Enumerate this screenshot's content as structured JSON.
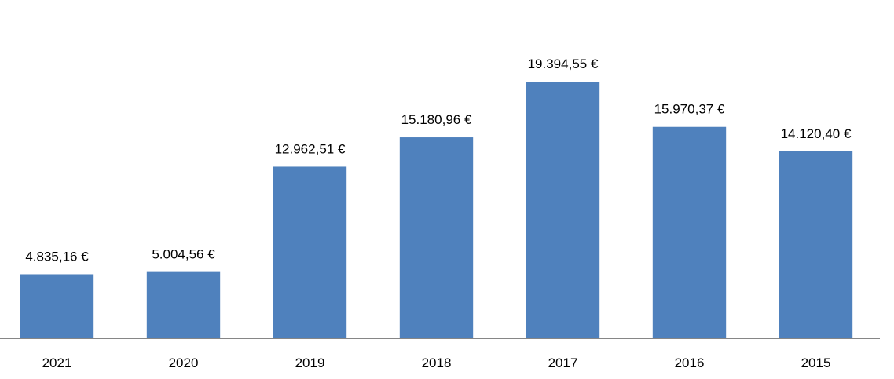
{
  "chart_data": {
    "type": "bar",
    "categories": [
      "2021",
      "2020",
      "2019",
      "2018",
      "2017",
      "2016",
      "2015"
    ],
    "values": [
      4835.16,
      5004.56,
      12962.51,
      15180.96,
      19394.55,
      15970.37,
      14120.4
    ],
    "value_labels": [
      "4.835,16 €",
      "5.004,56 €",
      "12.962,51 €",
      "15.180,96 €",
      "19.394,55 €",
      "15.970,37 €",
      "14.120,40 €"
    ],
    "color": "#4f81bd"
  }
}
